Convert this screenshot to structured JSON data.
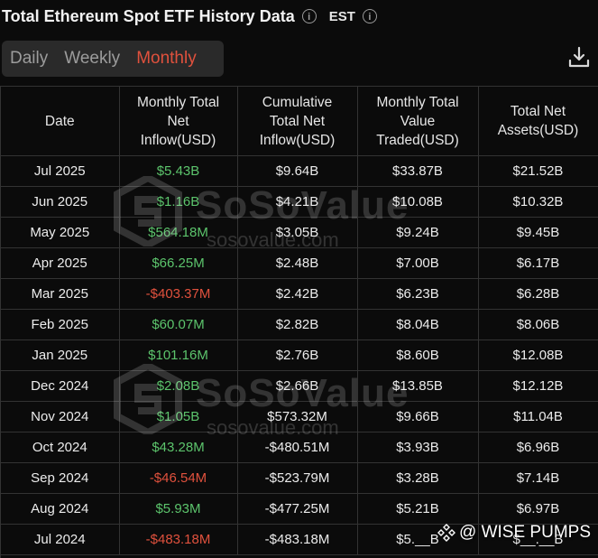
{
  "header": {
    "title": "Total Ethereum Spot ETF History Data",
    "timezone": "EST"
  },
  "tabs": [
    {
      "label": "Daily",
      "active": false
    },
    {
      "label": "Weekly",
      "active": false
    },
    {
      "label": "Monthly",
      "active": true
    }
  ],
  "table": {
    "headers": {
      "date": "Date",
      "inflow": [
        "Monthly Total",
        "Net",
        "Inflow(USD)"
      ],
      "cumulative": [
        "Cumulative",
        "Total Net",
        "Inflow(USD)"
      ],
      "traded": [
        "Monthly Total",
        "Value",
        "Traded(USD)"
      ],
      "assets": [
        "Total Net",
        "Assets(USD)"
      ]
    },
    "rows": [
      {
        "date": "Jul 2025",
        "inflow": "$5.43B",
        "cumulative": "$9.64B",
        "traded": "$33.87B",
        "assets": "$21.52B"
      },
      {
        "date": "Jun 2025",
        "inflow": "$1.16B",
        "cumulative": "$4.21B",
        "traded": "$10.08B",
        "assets": "$10.32B"
      },
      {
        "date": "May 2025",
        "inflow": "$564.18M",
        "cumulative": "$3.05B",
        "traded": "$9.24B",
        "assets": "$9.45B"
      },
      {
        "date": "Apr 2025",
        "inflow": "$66.25M",
        "cumulative": "$2.48B",
        "traded": "$7.00B",
        "assets": "$6.17B"
      },
      {
        "date": "Mar 2025",
        "inflow": "-$403.37M",
        "cumulative": "$2.42B",
        "traded": "$6.23B",
        "assets": "$6.28B"
      },
      {
        "date": "Feb 2025",
        "inflow": "$60.07M",
        "cumulative": "$2.82B",
        "traded": "$8.04B",
        "assets": "$8.06B"
      },
      {
        "date": "Jan 2025",
        "inflow": "$101.16M",
        "cumulative": "$2.76B",
        "traded": "$8.60B",
        "assets": "$12.08B"
      },
      {
        "date": "Dec 2024",
        "inflow": "$2.08B",
        "cumulative": "$2.66B",
        "traded": "$13.85B",
        "assets": "$12.12B"
      },
      {
        "date": "Nov 2024",
        "inflow": "$1.05B",
        "cumulative": "$573.32M",
        "traded": "$9.66B",
        "assets": "$11.04B"
      },
      {
        "date": "Oct 2024",
        "inflow": "$43.28M",
        "cumulative": "-$480.51M",
        "traded": "$3.93B",
        "assets": "$6.96B"
      },
      {
        "date": "Sep 2024",
        "inflow": "-$46.54M",
        "cumulative": "-$523.79M",
        "traded": "$3.28B",
        "assets": "$7.14B"
      },
      {
        "date": "Aug 2024",
        "inflow": "$5.93M",
        "cumulative": "-$477.25M",
        "traded": "$5.21B",
        "assets": "$6.97B"
      },
      {
        "date": "Jul 2024",
        "inflow": "-$483.18M",
        "cumulative": "-$483.18M",
        "traded": "$5.__B",
        "assets": "$__.__B"
      }
    ]
  },
  "watermark": {
    "text": "SoSoValue",
    "sub": "sosovalue.com"
  },
  "brand": {
    "label": "@ WISE PUMPS"
  },
  "colors": {
    "positive": "#5cc46c",
    "negative": "#e0513d",
    "accent": "#e0513d"
  },
  "icons": {
    "info": "info-circle-icon",
    "download": "download-icon",
    "brand": "binance-diamond-icon"
  }
}
